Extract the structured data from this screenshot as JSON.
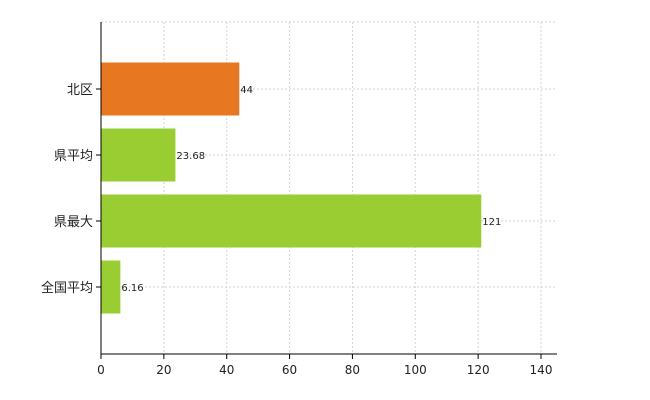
{
  "chart_data": {
    "type": "bar",
    "orientation": "horizontal",
    "categories": [
      "北区",
      "県平均",
      "県最大",
      "全国平均"
    ],
    "values": [
      44,
      23.68,
      121,
      6.16
    ],
    "value_labels": [
      "44",
      "23.68",
      "121",
      "6.16"
    ],
    "bar_colors": [
      "#e87722",
      "#9acd32",
      "#9acd32",
      "#9acd32"
    ],
    "title": "",
    "xlabel": "",
    "ylabel": "",
    "xlim": [
      0,
      140
    ],
    "xticks": [
      0,
      20,
      40,
      60,
      80,
      100,
      120,
      140
    ],
    "xtick_labels": [
      "0",
      "20",
      "40",
      "60",
      "80",
      "100",
      "120",
      "140"
    ],
    "grid": true,
    "legend": "none"
  }
}
